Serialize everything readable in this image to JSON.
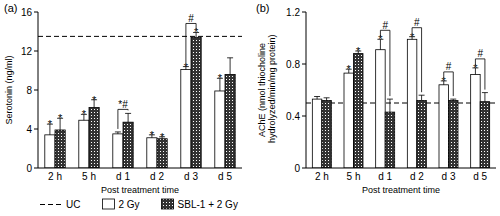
{
  "chart_data": [
    {
      "type": "bar",
      "title": "(a)",
      "x_label": "Post treatment time",
      "y_label": "Serotonin (ng/ml)",
      "categories": [
        "2 h",
        "5 h",
        "d 1",
        "d 2",
        "d 3",
        "d 5"
      ],
      "ylim": [
        0,
        16
      ],
      "yticks": [
        0,
        4,
        8,
        12,
        16
      ],
      "grid": false,
      "legend": "bottom",
      "reference": {
        "value": 13.5,
        "label": "UC",
        "line_style": "dashed"
      },
      "series": [
        {
          "name": "2 Gy",
          "color": "#ffffff",
          "values": [
            3.4,
            4.9,
            3.5,
            3.1,
            10.1,
            7.9
          ],
          "errors": [
            1.1,
            0.6,
            0.2,
            0.3,
            0.3,
            1.3
          ],
          "significance": [
            "*",
            "*",
            null,
            "*",
            "*",
            "*"
          ]
        },
        {
          "name": "SBL-1 + 2 Gy",
          "color": "#333333",
          "values": [
            3.9,
            6.2,
            4.7,
            3.0,
            13.4,
            9.6
          ],
          "errors": [
            1.2,
            0.8,
            0.9,
            0.2,
            0.5,
            1.7
          ],
          "significance": [
            "*",
            "*",
            null,
            "*",
            "*",
            null
          ]
        }
      ],
      "brackets": [
        {
          "index": 2,
          "label": "*#"
        },
        {
          "index": 4,
          "label": "#"
        }
      ]
    },
    {
      "type": "bar",
      "title": "(b)",
      "x_label": "Post treatment time",
      "y_label": "AChE (nmol thiocholine hydrolyzed/min/mg protein)",
      "categories": [
        "2 h",
        "5 h",
        "d 1",
        "d 2",
        "d 3",
        "d 5"
      ],
      "ylim": [
        0,
        1.2
      ],
      "yticks": [
        0,
        0.4,
        0.8,
        1.2
      ],
      "grid": false,
      "reference": {
        "value": 0.5,
        "line_style": "dashed"
      },
      "series": [
        {
          "color": "#ffffff",
          "values": [
            0.53,
            0.73,
            0.91,
            0.99,
            0.64,
            0.72
          ],
          "errors": [
            0.02,
            0.03,
            0.08,
            0.02,
            0.03,
            0.05
          ],
          "significance": [
            null,
            "*",
            "*",
            "*",
            "*",
            "*"
          ]
        },
        {
          "color": "#333333",
          "values": [
            0.52,
            0.88,
            0.43,
            0.52,
            0.52,
            0.51
          ],
          "errors": [
            0.02,
            0.02,
            0.1,
            0.04,
            0.01,
            0.07
          ],
          "significance": [
            null,
            "*",
            null,
            null,
            null,
            null
          ]
        }
      ],
      "brackets": [
        {
          "index": 2,
          "label": "#"
        },
        {
          "index": 3,
          "label": "#"
        },
        {
          "index": 4,
          "label": "#"
        },
        {
          "index": 5,
          "label": "#"
        }
      ]
    }
  ]
}
